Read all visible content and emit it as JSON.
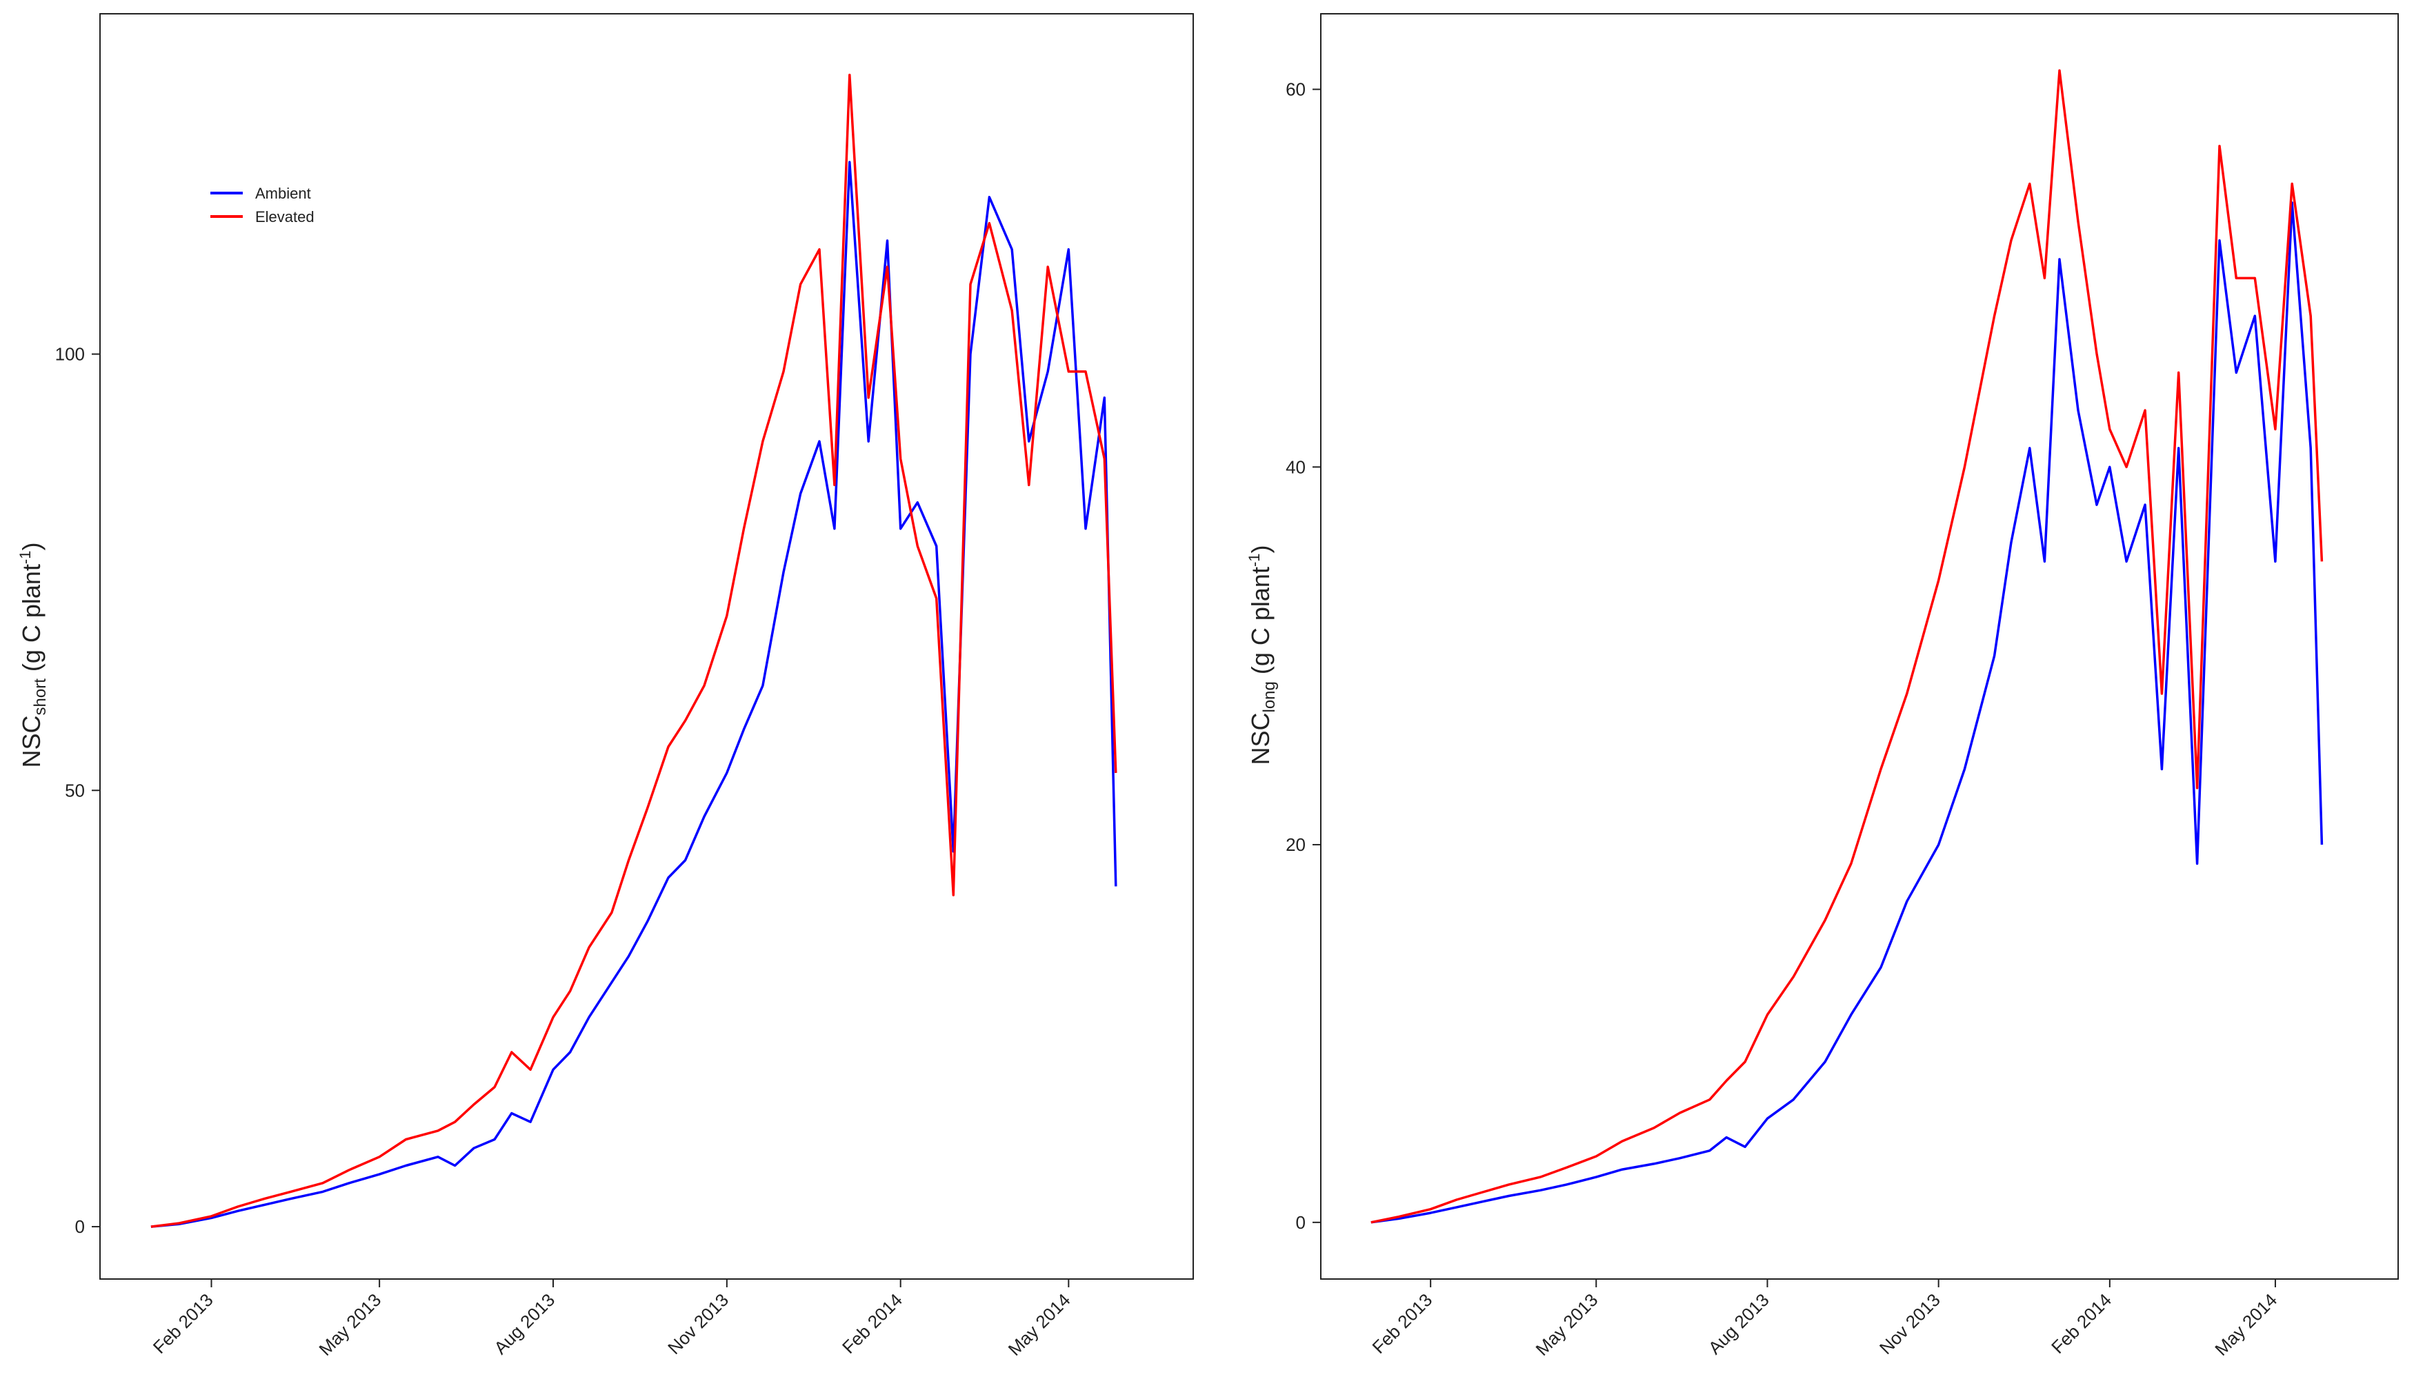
{
  "chart_data": [
    {
      "type": "line",
      "ylabel": {
        "main": "NSC",
        "sub": "short",
        "unit": " (g C plant",
        "sup": "-1",
        "close": ")"
      },
      "xlabel": "",
      "title": "",
      "legend": {
        "placement": "top-left",
        "entries": [
          "Ambient",
          "Elevated"
        ]
      },
      "ylim": [
        -6,
        139
      ],
      "yticks": [
        0,
        50,
        100
      ],
      "xlim": [
        "2012-12-04",
        "2014-07-06"
      ],
      "xticks": [
        {
          "date": "2013-02-01",
          "label": "Feb 2013"
        },
        {
          "date": "2013-05-01",
          "label": "May 2013"
        },
        {
          "date": "2013-08-01",
          "label": "Aug 2013"
        },
        {
          "date": "2013-11-01",
          "label": "Nov 2013"
        },
        {
          "date": "2014-02-01",
          "label": "Feb 2014"
        },
        {
          "date": "2014-05-01",
          "label": "May 2014"
        }
      ],
      "grid": false,
      "series": [
        {
          "name": "Ambient",
          "color": "#0000ff",
          "x": [
            "2012-12-31",
            "2013-01-15",
            "2013-02-01",
            "2013-02-15",
            "2013-03-01",
            "2013-03-15",
            "2013-04-01",
            "2013-04-15",
            "2013-05-01",
            "2013-05-15",
            "2013-06-01",
            "2013-06-10",
            "2013-06-20",
            "2013-07-01",
            "2013-07-10",
            "2013-07-20",
            "2013-08-01",
            "2013-08-10",
            "2013-08-20",
            "2013-09-01",
            "2013-09-10",
            "2013-09-20",
            "2013-10-01",
            "2013-10-10",
            "2013-10-20",
            "2013-11-01",
            "2013-11-10",
            "2013-11-20",
            "2013-12-01",
            "2013-12-10",
            "2013-12-20",
            "2013-12-28",
            "2014-01-05",
            "2014-01-15",
            "2014-01-25",
            "2014-02-01",
            "2014-02-10",
            "2014-02-20",
            "2014-03-01",
            "2014-03-10",
            "2014-03-20",
            "2014-04-01",
            "2014-04-10",
            "2014-04-20",
            "2014-05-01",
            "2014-05-10",
            "2014-05-20",
            "2014-05-26"
          ],
          "y": [
            0,
            0.3,
            1,
            1.8,
            2.5,
            3.2,
            4,
            5,
            6,
            7,
            8,
            7,
            9,
            10,
            13,
            12,
            18,
            20,
            24,
            28,
            31,
            35,
            40,
            42,
            47,
            52,
            57,
            62,
            75,
            84,
            90,
            80,
            122,
            90,
            113,
            80,
            83,
            78,
            43,
            100,
            118,
            112,
            90,
            98,
            112,
            80,
            95,
            39
          ]
        },
        {
          "name": "Elevated",
          "color": "#ff0000",
          "x": [
            "2012-12-31",
            "2013-01-15",
            "2013-02-01",
            "2013-02-15",
            "2013-03-01",
            "2013-03-15",
            "2013-04-01",
            "2013-04-15",
            "2013-05-01",
            "2013-05-15",
            "2013-06-01",
            "2013-06-10",
            "2013-06-20",
            "2013-07-01",
            "2013-07-10",
            "2013-07-20",
            "2013-08-01",
            "2013-08-10",
            "2013-08-20",
            "2013-09-01",
            "2013-09-10",
            "2013-09-20",
            "2013-10-01",
            "2013-10-10",
            "2013-10-20",
            "2013-11-01",
            "2013-11-10",
            "2013-11-20",
            "2013-12-01",
            "2013-12-10",
            "2013-12-20",
            "2013-12-28",
            "2014-01-05",
            "2014-01-15",
            "2014-01-25",
            "2014-02-01",
            "2014-02-10",
            "2014-02-20",
            "2014-03-01",
            "2014-03-10",
            "2014-03-20",
            "2014-04-01",
            "2014-04-10",
            "2014-04-20",
            "2014-05-01",
            "2014-05-10",
            "2014-05-20",
            "2014-05-26"
          ],
          "y": [
            0,
            0.4,
            1.2,
            2.3,
            3.2,
            4,
            5,
            6.5,
            8,
            10,
            11,
            12,
            14,
            16,
            20,
            18,
            24,
            27,
            32,
            36,
            42,
            48,
            55,
            58,
            62,
            70,
            80,
            90,
            98,
            108,
            112,
            85,
            132,
            95,
            110,
            88,
            78,
            72,
            38,
            108,
            115,
            105,
            85,
            110,
            98,
            98,
            88,
            52
          ]
        }
      ]
    },
    {
      "type": "line",
      "ylabel": {
        "main": "NSC",
        "sub": "long",
        "unit": " (g C plant",
        "sup": "-1",
        "close": ")"
      },
      "xlabel": "",
      "title": "",
      "ylim": [
        -3,
        64
      ],
      "yticks": [
        0,
        20,
        40,
        60
      ],
      "xlim": [
        "2012-12-04",
        "2014-07-06"
      ],
      "xticks": [
        {
          "date": "2013-02-01",
          "label": "Feb 2013"
        },
        {
          "date": "2013-05-01",
          "label": "May 2013"
        },
        {
          "date": "2013-08-01",
          "label": "Aug 2013"
        },
        {
          "date": "2013-11-01",
          "label": "Nov 2013"
        },
        {
          "date": "2014-02-01",
          "label": "Feb 2014"
        },
        {
          "date": "2014-05-01",
          "label": "May 2014"
        }
      ],
      "grid": false,
      "series": [
        {
          "name": "Ambient",
          "color": "#0000ff",
          "x": [
            "2012-12-31",
            "2013-01-15",
            "2013-02-01",
            "2013-02-15",
            "2013-03-01",
            "2013-03-15",
            "2013-04-01",
            "2013-04-15",
            "2013-05-01",
            "2013-05-15",
            "2013-06-01",
            "2013-06-15",
            "2013-07-01",
            "2013-07-10",
            "2013-07-20",
            "2013-08-01",
            "2013-08-15",
            "2013-09-01",
            "2013-09-15",
            "2013-10-01",
            "2013-10-15",
            "2013-11-01",
            "2013-11-15",
            "2013-12-01",
            "2013-12-10",
            "2013-12-20",
            "2013-12-28",
            "2014-01-05",
            "2014-01-15",
            "2014-01-25",
            "2014-02-01",
            "2014-02-10",
            "2014-02-20",
            "2014-03-01",
            "2014-03-10",
            "2014-03-20",
            "2014-04-01",
            "2014-04-10",
            "2014-04-20",
            "2014-05-01",
            "2014-05-10",
            "2014-05-20",
            "2014-05-26"
          ],
          "y": [
            0,
            0.2,
            0.5,
            0.8,
            1.1,
            1.4,
            1.7,
            2,
            2.4,
            2.8,
            3.1,
            3.4,
            3.8,
            4.5,
            4,
            5.5,
            6.5,
            8.5,
            11,
            13.5,
            17,
            20,
            24,
            30,
            36,
            41,
            35,
            51,
            43,
            38,
            40,
            35,
            38,
            24,
            41,
            19,
            52,
            45,
            48,
            35,
            54,
            41,
            20
          ]
        },
        {
          "name": "Elevated",
          "color": "#ff0000",
          "x": [
            "2012-12-31",
            "2013-01-15",
            "2013-02-01",
            "2013-02-15",
            "2013-03-01",
            "2013-03-15",
            "2013-04-01",
            "2013-04-15",
            "2013-05-01",
            "2013-05-15",
            "2013-06-01",
            "2013-06-15",
            "2013-07-01",
            "2013-07-10",
            "2013-07-20",
            "2013-08-01",
            "2013-08-15",
            "2013-09-01",
            "2013-09-15",
            "2013-10-01",
            "2013-10-15",
            "2013-11-01",
            "2013-11-15",
            "2013-12-01",
            "2013-12-10",
            "2013-12-20",
            "2013-12-28",
            "2014-01-05",
            "2014-01-15",
            "2014-01-25",
            "2014-02-01",
            "2014-02-10",
            "2014-02-20",
            "2014-03-01",
            "2014-03-10",
            "2014-03-20",
            "2014-04-01",
            "2014-04-10",
            "2014-04-20",
            "2014-05-01",
            "2014-05-10",
            "2014-05-20",
            "2014-05-26"
          ],
          "y": [
            0,
            0.3,
            0.7,
            1.2,
            1.6,
            2,
            2.4,
            2.9,
            3.5,
            4.3,
            5,
            5.8,
            6.5,
            7.5,
            8.5,
            11,
            13,
            16,
            19,
            24,
            28,
            34,
            40,
            48,
            52,
            55,
            50,
            61,
            53,
            46,
            42,
            40,
            43,
            28,
            45,
            23,
            57,
            50,
            50,
            42,
            55,
            48,
            35
          ]
        }
      ]
    }
  ]
}
